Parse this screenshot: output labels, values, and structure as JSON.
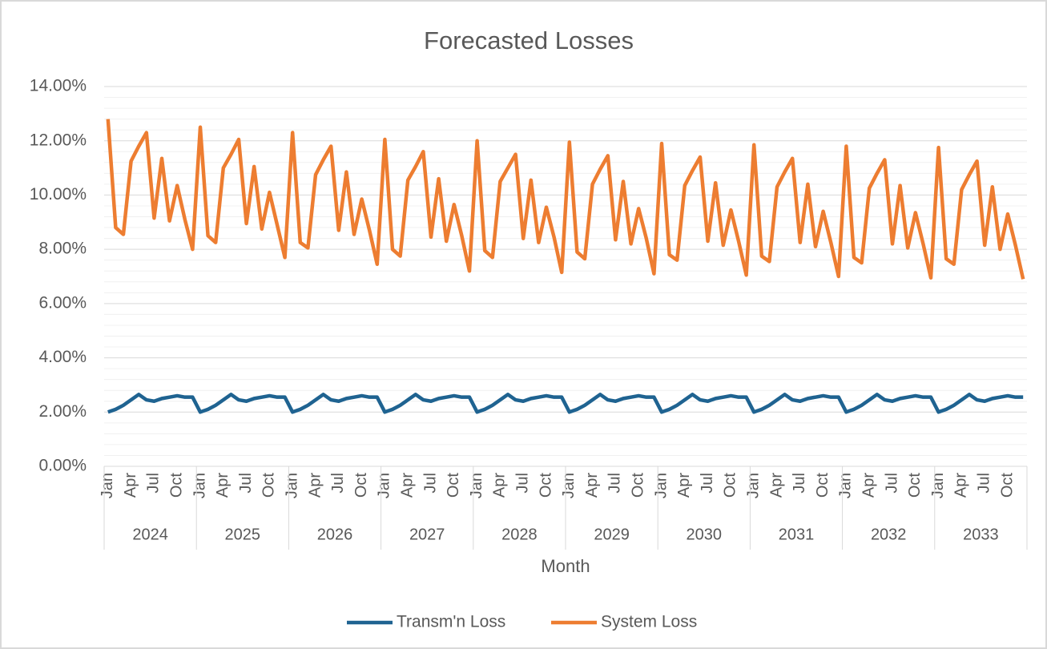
{
  "chart_data": {
    "type": "line",
    "title": "Forecasted Losses",
    "x_label": "Month",
    "categories": [
      "Jan",
      null,
      null,
      "Apr",
      null,
      null,
      "Jul",
      null,
      null,
      "Oct",
      null,
      null,
      "Jan",
      null,
      null,
      "Apr",
      null,
      null,
      "Jul",
      null,
      null,
      "Oct",
      null,
      null,
      "Jan",
      null,
      null,
      "Apr",
      null,
      null,
      "Jul",
      null,
      null,
      "Oct",
      null,
      null,
      "Jan",
      null,
      null,
      "Apr",
      null,
      null,
      "Jul",
      null,
      null,
      "Oct",
      null,
      null,
      "Jan",
      null,
      null,
      "Apr",
      null,
      null,
      "Jul",
      null,
      null,
      "Oct",
      null,
      null,
      "Jan",
      null,
      null,
      "Apr",
      null,
      null,
      "Jul",
      null,
      null,
      "Oct",
      null,
      null,
      "Jan",
      null,
      null,
      "Apr",
      null,
      null,
      "Jul",
      null,
      null,
      "Oct",
      null,
      null,
      "Jan",
      null,
      null,
      "Apr",
      null,
      null,
      "Jul",
      null,
      null,
      "Oct",
      null,
      null,
      "Jan",
      null,
      null,
      "Apr",
      null,
      null,
      "Jul",
      null,
      null,
      "Oct",
      null,
      null,
      "Jan",
      null,
      null,
      "Apr",
      null,
      null,
      "Jul",
      null,
      null,
      "Oct",
      null,
      null
    ],
    "groups": [
      2024,
      2025,
      2026,
      2027,
      2028,
      2029,
      2030,
      2031,
      2032,
      2033
    ],
    "series": [
      {
        "name": "Transm'n Loss",
        "color": "#1f6391",
        "values": [
          2.0,
          2.1,
          2.25,
          2.45,
          2.65,
          2.45,
          2.4,
          2.5,
          2.55,
          2.6,
          2.55,
          2.55,
          2.0,
          2.1,
          2.25,
          2.45,
          2.65,
          2.45,
          2.4,
          2.5,
          2.55,
          2.6,
          2.55,
          2.55,
          2.0,
          2.1,
          2.25,
          2.45,
          2.65,
          2.45,
          2.4,
          2.5,
          2.55,
          2.6,
          2.55,
          2.55,
          2.0,
          2.1,
          2.25,
          2.45,
          2.65,
          2.45,
          2.4,
          2.5,
          2.55,
          2.6,
          2.55,
          2.55,
          2.0,
          2.1,
          2.25,
          2.45,
          2.65,
          2.45,
          2.4,
          2.5,
          2.55,
          2.6,
          2.55,
          2.55,
          2.0,
          2.1,
          2.25,
          2.45,
          2.65,
          2.45,
          2.4,
          2.5,
          2.55,
          2.6,
          2.55,
          2.55,
          2.0,
          2.1,
          2.25,
          2.45,
          2.65,
          2.45,
          2.4,
          2.5,
          2.55,
          2.6,
          2.55,
          2.55,
          2.0,
          2.1,
          2.25,
          2.45,
          2.65,
          2.45,
          2.4,
          2.5,
          2.55,
          2.6,
          2.55,
          2.55,
          2.0,
          2.1,
          2.25,
          2.45,
          2.65,
          2.45,
          2.4,
          2.5,
          2.55,
          2.6,
          2.55,
          2.55,
          2.0,
          2.1,
          2.25,
          2.45,
          2.65,
          2.45,
          2.4,
          2.5,
          2.55,
          2.6,
          2.55,
          2.55
        ]
      },
      {
        "name": "System Loss",
        "color": "#ed7d31",
        "values": [
          12.8,
          8.8,
          8.55,
          11.25,
          11.8,
          12.3,
          9.15,
          11.35,
          9.05,
          10.35,
          9.1,
          8.0,
          12.5,
          8.5,
          8.25,
          11.0,
          11.5,
          12.05,
          8.95,
          11.05,
          8.75,
          10.1,
          8.9,
          7.7,
          12.3,
          8.25,
          8.05,
          10.75,
          11.3,
          11.8,
          8.7,
          10.85,
          8.55,
          9.85,
          8.7,
          7.45,
          12.05,
          8.0,
          7.75,
          10.55,
          11.05,
          11.6,
          8.45,
          10.6,
          8.3,
          9.65,
          8.5,
          7.2,
          12.0,
          7.95,
          7.7,
          10.5,
          11.0,
          11.5,
          8.4,
          10.55,
          8.25,
          9.55,
          8.45,
          7.15,
          11.95,
          7.9,
          7.65,
          10.4,
          10.95,
          11.45,
          8.35,
          10.5,
          8.2,
          9.5,
          8.4,
          7.1,
          11.9,
          7.8,
          7.6,
          10.35,
          10.9,
          11.4,
          8.3,
          10.45,
          8.15,
          9.45,
          8.3,
          7.05,
          11.85,
          7.75,
          7.55,
          10.3,
          10.85,
          11.35,
          8.25,
          10.4,
          8.1,
          9.4,
          8.25,
          7.0,
          11.8,
          7.7,
          7.5,
          10.25,
          10.8,
          11.3,
          8.2,
          10.35,
          8.05,
          9.35,
          8.2,
          6.95,
          11.75,
          7.65,
          7.45,
          10.2,
          10.75,
          11.25,
          8.15,
          10.3,
          8.0,
          9.3,
          8.15,
          6.9
        ]
      }
    ],
    "ylim": [
      0,
      14
    ],
    "yticks": [
      {
        "value": 0,
        "label": "0.00%"
      },
      {
        "value": 2,
        "label": "2.00%"
      },
      {
        "value": 4,
        "label": "4.00%"
      },
      {
        "value": 6,
        "label": "6.00%"
      },
      {
        "value": 8,
        "label": "8.00%"
      },
      {
        "value": 10,
        "label": "10.00%"
      },
      {
        "value": 12,
        "label": "12.00%"
      },
      {
        "value": 14,
        "label": "14.00%"
      }
    ],
    "minor_yticks": [
      0.4,
      0.8,
      1.2,
      1.6,
      2.4,
      2.8,
      3.2,
      3.6,
      4.4,
      4.8,
      5.2,
      5.6,
      6.4,
      6.8,
      7.2,
      7.6,
      8.4,
      8.8,
      9.2,
      9.6,
      10.4,
      10.8,
      11.2,
      11.6,
      12.4,
      12.8,
      13.2,
      13.6
    ],
    "grid": true,
    "legend": "bottom"
  }
}
